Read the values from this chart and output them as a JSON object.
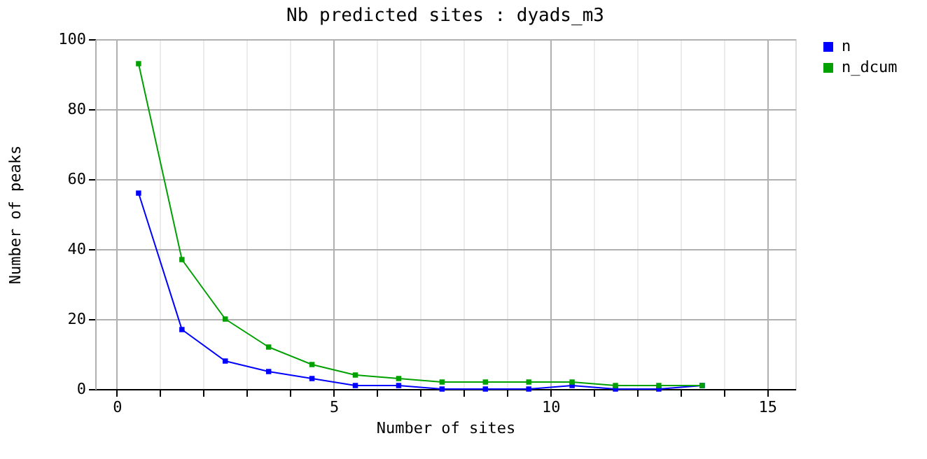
{
  "chart_data": {
    "type": "line",
    "title": "Nb predicted sites : dyads_m3",
    "xlabel": "Number of sites",
    "ylabel": "Number of peaks",
    "x": [
      0.5,
      1.5,
      2.5,
      3.5,
      4.5,
      5.5,
      6.5,
      7.5,
      8.5,
      9.5,
      10.5,
      11.5,
      12.5,
      13.5
    ],
    "series": [
      {
        "name": "n",
        "color": "#0000ff",
        "values": [
          56,
          17,
          8,
          5,
          3,
          1,
          1,
          0,
          0,
          0,
          1,
          0,
          0,
          1
        ]
      },
      {
        "name": "n_dcum",
        "color": "#00a000",
        "values": [
          93,
          37,
          20,
          12,
          7,
          4,
          3,
          2,
          2,
          2,
          2,
          1,
          1,
          1
        ]
      }
    ],
    "xlim": [
      -0.5,
      15.65
    ],
    "xticks": [
      0,
      {
        "value": 1,
        "label": null
      },
      {
        "value": 2,
        "label": null
      },
      {
        "value": 3,
        "label": null
      },
      {
        "value": 4,
        "label": null
      },
      5,
      {
        "value": 6,
        "label": null
      },
      {
        "value": 7,
        "label": null
      },
      {
        "value": 8,
        "label": null
      },
      {
        "value": 9,
        "label": null
      },
      10,
      {
        "value": 11,
        "label": null
      },
      {
        "value": 12,
        "label": null
      },
      {
        "value": 13,
        "label": null
      },
      {
        "value": 14,
        "label": null
      },
      15
    ],
    "ylim": [
      0,
      100
    ],
    "yticks": [
      0,
      20,
      40,
      60,
      80,
      100
    ],
    "grid": true,
    "legend": "top right",
    "marker": "square",
    "line_style": "solid"
  }
}
